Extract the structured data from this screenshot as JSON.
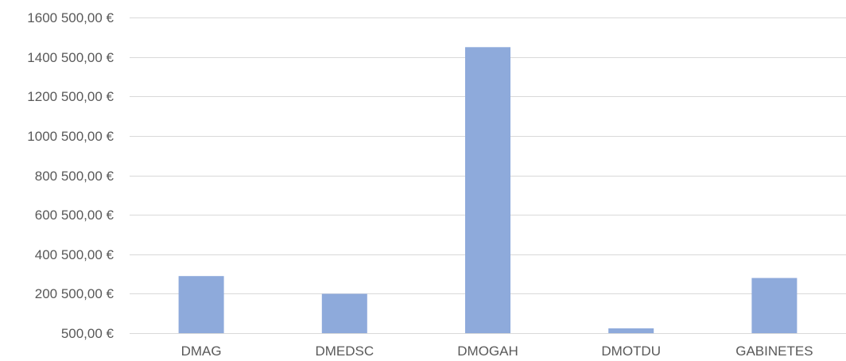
{
  "chart_data": {
    "type": "bar",
    "categories": [
      "DMAG",
      "DMEDSC",
      "DMOGAH",
      "DMOTDU",
      "GABINETES"
    ],
    "values": [
      290000,
      200000,
      1450000,
      25000,
      280000
    ],
    "yticks": [
      500,
      200500,
      400500,
      600500,
      800500,
      1000500,
      1200500,
      1400500,
      1600500
    ],
    "ytick_labels": [
      "500,00 €",
      "200 500,00 €",
      "400 500,00 €",
      "600 500,00 €",
      "800 500,00 €",
      "1000 500,00 €",
      "1200 500,00 €",
      "1400 500,00 €",
      "1600 500,00 €"
    ],
    "ylim": [
      500,
      1600500
    ],
    "grid": true,
    "bar_color": "#8eaadb",
    "title": "",
    "xlabel": "",
    "ylabel": ""
  }
}
